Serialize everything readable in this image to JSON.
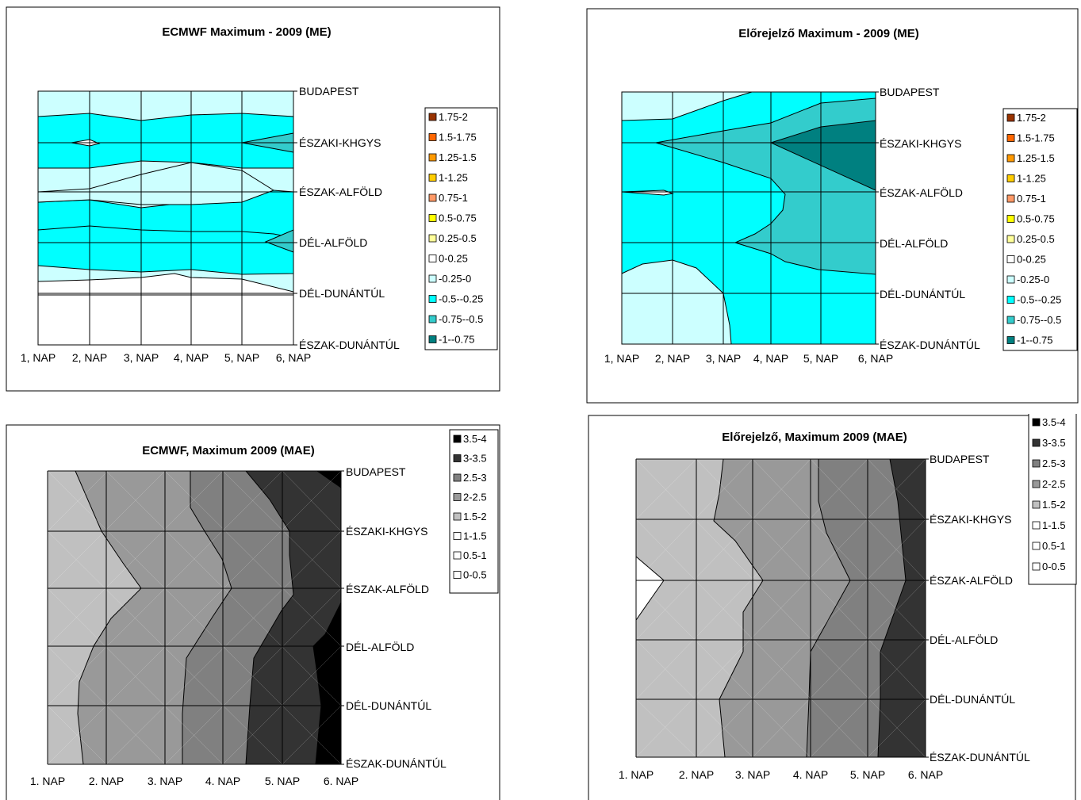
{
  "chart_data": [
    {
      "type": "heatmap",
      "title": "ECMWF Maximum - 2009 (ME)",
      "x_tick_labels": [
        "1, NAP",
        "2, NAP",
        "3, NAP",
        "4, NAP",
        "5, NAP",
        "6, NAP"
      ],
      "y_tick_labels": [
        "BUDAPEST",
        "ÉSZAKI-KHGYS",
        "ÉSZAK-ALFÖLD",
        "DÉL-ALFÖLD",
        "DÉL-DUNÁNTÚL",
        "ÉSZAK-DUNÁNTÚL"
      ],
      "legend": [
        {
          "label": "1.75-2",
          "color": "#993300"
        },
        {
          "label": "1.5-1.75",
          "color": "#ff6600"
        },
        {
          "label": "1.25-1.5",
          "color": "#ff9900"
        },
        {
          "label": "1-1.25",
          "color": "#ffcc00"
        },
        {
          "label": "0.75-1",
          "color": "#ff9966"
        },
        {
          "label": "0.5-0.75",
          "color": "#ffff00"
        },
        {
          "label": "0.25-0.5",
          "color": "#ffff99"
        },
        {
          "label": "0-0.25",
          "color": "#ffffff"
        },
        {
          "label": "-0.25-0",
          "color": "#ccffff"
        },
        {
          "label": "-0.5--0.25",
          "color": "#00ffff"
        },
        {
          "label": "-0.75--0.5",
          "color": "#33cccc"
        },
        {
          "label": "-1--0.75",
          "color": "#008080"
        }
      ],
      "legend_placement": "right"
    },
    {
      "type": "heatmap",
      "title": "Előrejelző Maximum - 2009 (ME)",
      "x_tick_labels": [
        "1, NAP",
        "2, NAP",
        "3, NAP",
        "4, NAP",
        "5, NAP",
        "6, NAP"
      ],
      "y_tick_labels": [
        "BUDAPEST",
        "ÉSZAKI-KHGYS",
        "ÉSZAK-ALFÖLD",
        "DÉL-ALFÖLD",
        "DÉL-DUNÁNTÚL",
        "ÉSZAK-DUNÁNTÚL"
      ],
      "legend": [
        {
          "label": "1.75-2",
          "color": "#993300"
        },
        {
          "label": "1.5-1.75",
          "color": "#ff6600"
        },
        {
          "label": "1.25-1.5",
          "color": "#ff9900"
        },
        {
          "label": "1-1.25",
          "color": "#ffcc00"
        },
        {
          "label": "0.75-1",
          "color": "#ff9966"
        },
        {
          "label": "0.5-0.75",
          "color": "#ffff00"
        },
        {
          "label": "0.25-0.5",
          "color": "#ffff99"
        },
        {
          "label": "0-0.25",
          "color": "#ffffff"
        },
        {
          "label": "-0.25-0",
          "color": "#ccffff"
        },
        {
          "label": "-0.5--0.25",
          "color": "#00ffff"
        },
        {
          "label": "-0.75--0.5",
          "color": "#33cccc"
        },
        {
          "label": "-1--0.75",
          "color": "#008080"
        }
      ],
      "legend_placement": "right"
    },
    {
      "type": "heatmap",
      "title": "ECMWF, Maximum 2009 (MAE)",
      "x_tick_labels": [
        "1. NAP",
        "2. NAP",
        "3. NAP",
        "4. NAP",
        "5. NAP",
        "6. NAP"
      ],
      "y_tick_labels": [
        "BUDAPEST",
        "ÉSZAKI-KHGYS",
        "ÉSZAK-ALFÖLD",
        "DÉL-ALFÖLD",
        "DÉL-DUNÁNTÚL",
        "ÉSZAK-DUNÁNTÚL"
      ],
      "legend": [
        {
          "label": "3.5-4",
          "color": "#000000"
        },
        {
          "label": "3-3.5",
          "color": "#333333"
        },
        {
          "label": "2.5-3",
          "color": "#808080"
        },
        {
          "label": "2-2.5",
          "color": "#999999"
        },
        {
          "label": "1.5-2",
          "color": "#c0c0c0"
        },
        {
          "label": "1-1.5",
          "color": "#ffffff"
        },
        {
          "label": "0.5-1",
          "color": "#ffffff"
        },
        {
          "label": "0-0.5",
          "color": "#ffffff"
        }
      ],
      "legend_placement": "top-right"
    },
    {
      "type": "heatmap",
      "title": "Előrejelző, Maximum 2009 (MAE)",
      "x_tick_labels": [
        "1. NAP",
        "2. NAP",
        "3. NAP",
        "4. NAP",
        "5. NAP",
        "6. NAP"
      ],
      "y_tick_labels": [
        "BUDAPEST",
        "ÉSZAKI-KHGYS",
        "ÉSZAK-ALFÖLD",
        "DÉL-ALFÖLD",
        "DÉL-DUNÁNTÚL",
        "ÉSZAK-DUNÁNTÚL"
      ],
      "legend": [
        {
          "label": "3.5-4",
          "color": "#000000"
        },
        {
          "label": "3-3.5",
          "color": "#333333"
        },
        {
          "label": "2.5-3",
          "color": "#808080"
        },
        {
          "label": "2-2.5",
          "color": "#999999"
        },
        {
          "label": "1.5-2",
          "color": "#c0c0c0"
        },
        {
          "label": "1-1.5",
          "color": "#ffffff"
        },
        {
          "label": "0.5-1",
          "color": "#ffffff"
        },
        {
          "label": "0-0.5",
          "color": "#ffffff"
        }
      ],
      "legend_placement": "top-right"
    }
  ]
}
